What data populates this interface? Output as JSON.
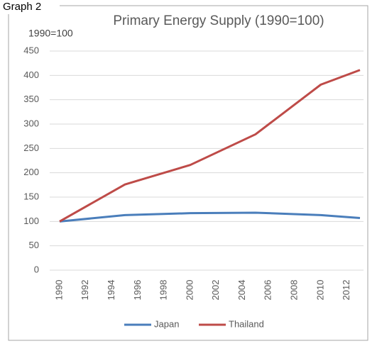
{
  "chart_data": {
    "type": "line",
    "label": "Graph 2",
    "title": "Primary Energy Supply (1990=100)",
    "ylabel": "1990=100",
    "x": [
      1990,
      1995,
      2000,
      2005,
      2010,
      2013
    ],
    "series": [
      {
        "name": "Japan",
        "color": "#4a7ebb",
        "values": [
          100,
          113,
          117,
          118,
          113,
          107
        ]
      },
      {
        "name": "Thailand",
        "color": "#be4b48",
        "values": [
          100,
          176,
          216,
          279,
          381,
          411
        ]
      }
    ],
    "xlim": [
      1990,
      2013
    ],
    "xticks": [
      1990,
      1992,
      1994,
      1996,
      1998,
      2000,
      2002,
      2004,
      2006,
      2008,
      2010,
      2012
    ],
    "ylim": [
      0,
      450
    ],
    "yticks": [
      0,
      50,
      100,
      150,
      200,
      250,
      300,
      350,
      400,
      450
    ],
    "grid": true,
    "legend": "bottom"
  }
}
